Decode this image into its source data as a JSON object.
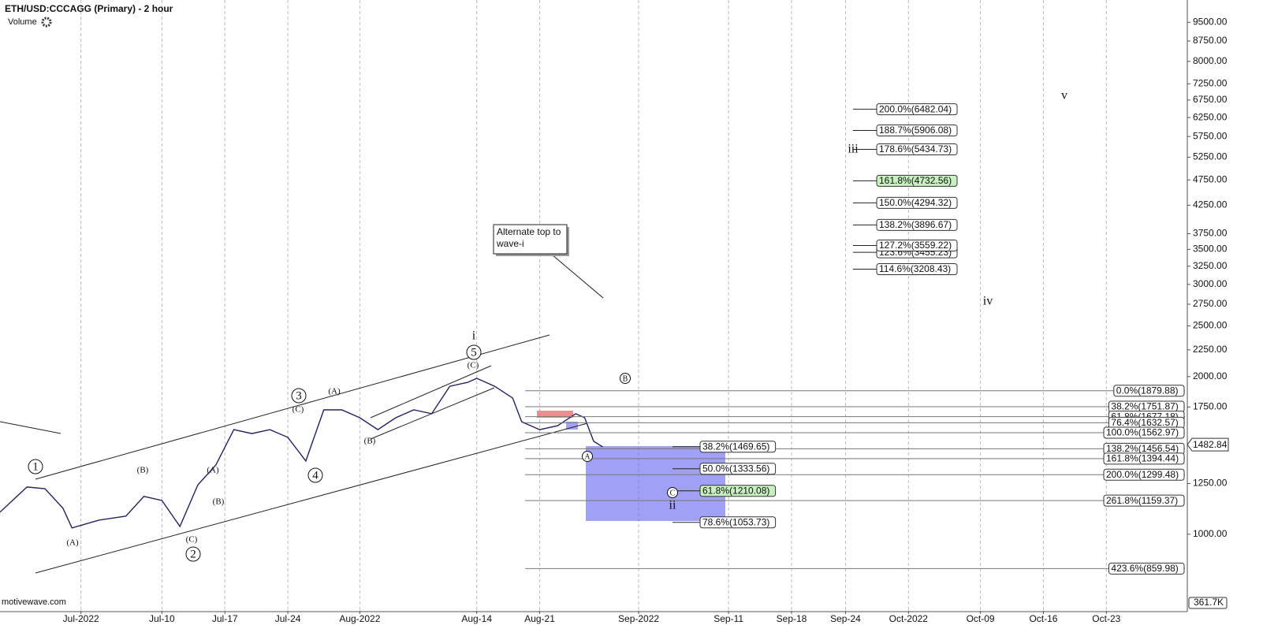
{
  "chart_data": {
    "type": "line",
    "title": "ETH/USD:CCCAGG (Primary) - 2 hour",
    "volume_label": "Volume",
    "watermark": "motivewave.com",
    "log_scale": true,
    "color": "#23235e",
    "x": [
      "2022-06-22",
      "2022-06-25",
      "2022-06-27",
      "2022-06-29",
      "2022-06-30",
      "2022-07-03",
      "2022-07-06",
      "2022-07-08",
      "2022-07-10",
      "2022-07-12",
      "2022-07-14",
      "2022-07-16",
      "2022-07-18",
      "2022-07-20",
      "2022-07-22",
      "2022-07-24",
      "2022-07-26",
      "2022-07-28",
      "2022-07-30",
      "2022-08-01",
      "2022-08-03",
      "2022-08-05",
      "2022-08-07",
      "2022-08-09",
      "2022-08-11",
      "2022-08-13",
      "2022-08-14",
      "2022-08-16",
      "2022-08-18",
      "2022-08-19",
      "2022-08-21",
      "2022-08-23",
      "2022-08-25",
      "2022-08-26",
      "2022-08-27",
      "2022-08-28"
    ],
    "values": [
      1102,
      1231,
      1222,
      1121,
      1028,
      1064,
      1083,
      1181,
      1160,
      1035,
      1243,
      1356,
      1584,
      1557,
      1584,
      1531,
      1380,
      1728,
      1728,
      1669,
      1584,
      1669,
      1728,
      1699,
      1917,
      1950,
      1985,
      1917,
      1820,
      1640,
      1584,
      1612,
      1699,
      1669,
      1505,
      1469
    ],
    "xlim": [
      "2022-06-22",
      "2022-11-01"
    ],
    "xticks": [
      {
        "value": "2022-07-01",
        "label": "Jul-2022"
      },
      {
        "value": "2022-07-10",
        "label": "Jul-10"
      },
      {
        "value": "2022-07-17",
        "label": "Jul-17"
      },
      {
        "value": "2022-07-24",
        "label": "Jul-24"
      },
      {
        "value": "2022-08-01",
        "label": "Aug-2022"
      },
      {
        "value": "2022-08-14",
        "label": "Aug-14"
      },
      {
        "value": "2022-08-21",
        "label": "Aug-21"
      },
      {
        "value": "2022-09-01",
        "label": "Sep-2022"
      },
      {
        "value": "2022-09-11",
        "label": "Sep-11"
      },
      {
        "value": "2022-09-18",
        "label": "Sep-18"
      },
      {
        "value": "2022-09-24",
        "label": "Sep-24"
      },
      {
        "value": "2022-10-01",
        "label": "Oct-2022"
      },
      {
        "value": "2022-10-09",
        "label": "Oct-09"
      },
      {
        "value": "2022-10-16",
        "label": "Oct-16"
      },
      {
        "value": "2022-10-23",
        "label": "Oct-23"
      }
    ],
    "ylim": [
      714,
      10480
    ],
    "yticks": [
      {
        "value": 9500,
        "label": "9500.00"
      },
      {
        "value": 8750,
        "label": "8750.00"
      },
      {
        "value": 8000,
        "label": "8000.00"
      },
      {
        "value": 7250,
        "label": "7250.00"
      },
      {
        "value": 6750,
        "label": "6750.00"
      },
      {
        "value": 6250,
        "label": "6250.00"
      },
      {
        "value": 5750,
        "label": "5750.00"
      },
      {
        "value": 5250,
        "label": "5250.00"
      },
      {
        "value": 4750,
        "label": "4750.00"
      },
      {
        "value": 4250,
        "label": "4250.00"
      },
      {
        "value": 3750,
        "label": "3750.00"
      },
      {
        "value": 3500,
        "label": "3500.00"
      },
      {
        "value": 3250,
        "label": "3250.00"
      },
      {
        "value": 3000,
        "label": "3000.00"
      },
      {
        "value": 2750,
        "label": "2750.00"
      },
      {
        "value": 2500,
        "label": "2500.00"
      },
      {
        "value": 2250,
        "label": "2250.00"
      },
      {
        "value": 2000,
        "label": "2000.00"
      },
      {
        "value": 1750,
        "label": "1750.00"
      },
      {
        "value": 1250,
        "label": "1250.00"
      },
      {
        "value": 1000,
        "label": "1000.00"
      }
    ],
    "last_price": 1482.84,
    "volume_max_label": "361.7K",
    "callout": "Alternate top to wave-i",
    "fib_right": [
      {
        "label": "0.0%(1879.88)",
        "value": 1879.88
      },
      {
        "label": "38.2%(1751.87)",
        "value": 1751.87
      },
      {
        "label": "61.8%(1677.18)",
        "value": 1677.18
      },
      {
        "label": "76.4%(1632.57)",
        "value": 1632.57
      },
      {
        "label": "100.0%(1562.97)",
        "value": 1562.97
      },
      {
        "label": "138.2%(1456.54)",
        "value": 1456.54
      },
      {
        "label": "161.8%(1394.44)",
        "value": 1394.44
      },
      {
        "label": "200.0%(1299.48)",
        "value": 1299.48
      },
      {
        "label": "261.8%(1159.37)",
        "value": 1159.37
      },
      {
        "label": "423.6%(859.98)",
        "value": 859.98
      }
    ],
    "fib_middle": [
      {
        "label": "38.2%(1469.65)",
        "value": 1469.65
      },
      {
        "label": "50.0%(1333.56)",
        "value": 1333.56
      },
      {
        "label": "61.8%(1210.08)",
        "value": 1210.08,
        "highlight": true
      },
      {
        "label": "78.6%(1053.73)",
        "value": 1053.73
      }
    ],
    "fib_upper": [
      {
        "label": "200.0%(6482.04)",
        "value": 6482.04
      },
      {
        "label": "188.7%(5906.08)",
        "value": 5906.08
      },
      {
        "label": "178.6%(5434.73)",
        "value": 5434.73
      },
      {
        "label": "161.8%(4732.56)",
        "value": 4732.56,
        "highlight": true
      },
      {
        "label": "150.0%(4294.32)",
        "value": 4294.32
      },
      {
        "label": "138.2%(3896.67)",
        "value": 3896.67
      },
      {
        "label": "123.6%(3455.23)",
        "value": 3455.23
      },
      {
        "label": "127.2%(3559.22)",
        "value": 3559.22
      },
      {
        "label": "114.6%(3208.43)",
        "value": 3208.43
      }
    ],
    "wave_labels": [
      "1",
      "2",
      "3",
      "4",
      "5",
      "A",
      "B",
      "C",
      "(A)",
      "(B)",
      "(A)",
      "(B)",
      "(C)",
      "(C)",
      "(A)",
      "(B)",
      "(C)",
      "i",
      "ii",
      "iii",
      "iv",
      "v"
    ]
  }
}
